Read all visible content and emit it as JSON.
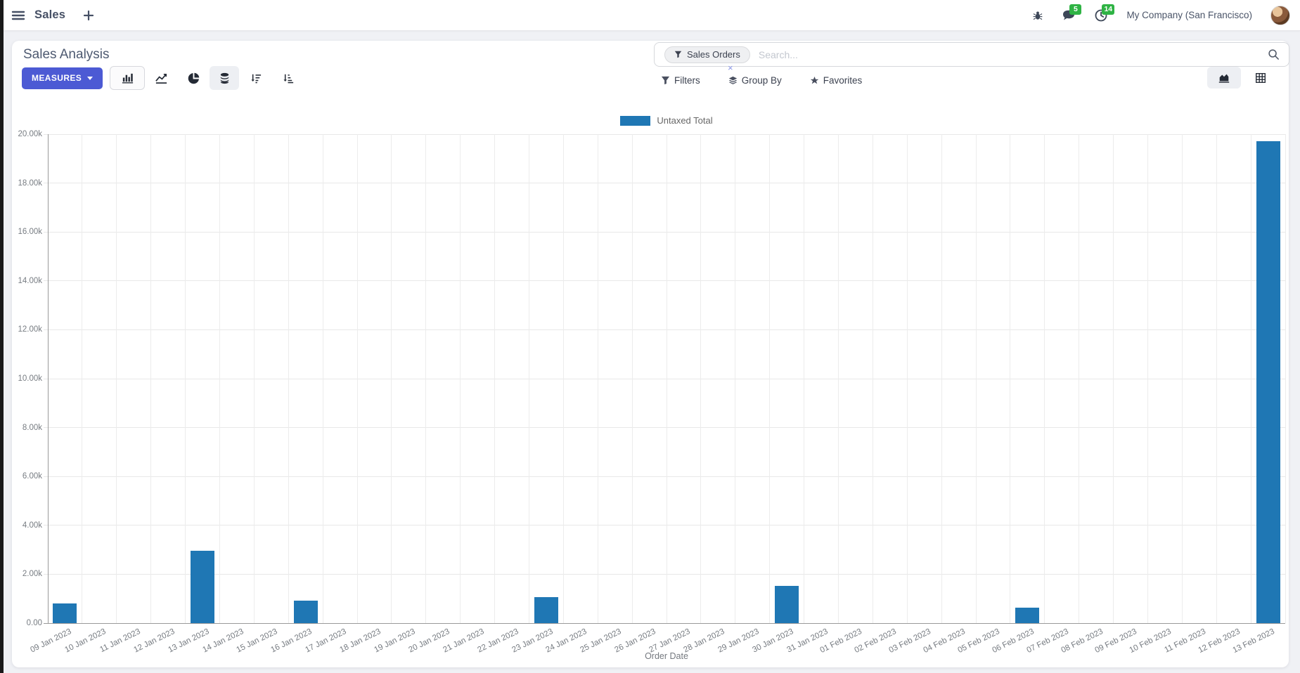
{
  "navbar": {
    "app_name": "Sales",
    "messages_badge": "5",
    "activities_badge": "14",
    "company": "My Company (San Francisco)"
  },
  "control_panel": {
    "title": "Sales Analysis",
    "measures_label": "MEASURES",
    "search": {
      "facet_label": "Sales Orders",
      "facet_remove": "×",
      "placeholder": "Search..."
    },
    "filters_label": "Filters",
    "group_by_label": "Group By",
    "favorites_label": "Favorites"
  },
  "icons": {
    "menu-icon": "hamburger",
    "new-tab-icon": "plus",
    "debug-icon": "bug",
    "messages-icon": "speech-bubble",
    "activities-icon": "clock",
    "bar-chart-icon": "vertical bars",
    "line-chart-icon": "polyline",
    "pie-chart-icon": "pie",
    "stacked-icon": "database stack",
    "sort-desc-icon": "arrow down + decreasing bars",
    "sort-asc-icon": "arrow down + increasing bars",
    "filter-icon": "funnel",
    "group-by-icon": "layers",
    "favorites-icon": "star",
    "search-icon": "magnifier",
    "graph-view-icon": "area chart",
    "pivot-view-icon": "grid table"
  },
  "colors": {
    "primary_button": "#4c5ad4",
    "bar_series": "#1f77b4",
    "badge_green": "#2fb344",
    "axis_text": "#767b81",
    "grid_line": "#e8e8e8"
  },
  "chart_data": {
    "type": "bar",
    "title": "",
    "xlabel": "Order Date",
    "ylabel": "",
    "ylim": [
      0,
      20000
    ],
    "ytick_step": 2000,
    "ytick_labels": [
      "20.00k",
      "18.00k",
      "16.00k",
      "14.00k",
      "12.00k",
      "10.00k",
      "8.00k",
      "6.00k",
      "4.00k",
      "2.00k",
      "0.00"
    ],
    "grid": true,
    "legend_position": "top",
    "categories": [
      "09 Jan 2023",
      "10 Jan 2023",
      "11 Jan 2023",
      "12 Jan 2023",
      "13 Jan 2023",
      "14 Jan 2023",
      "15 Jan 2023",
      "16 Jan 2023",
      "17 Jan 2023",
      "18 Jan 2023",
      "19 Jan 2023",
      "20 Jan 2023",
      "21 Jan 2023",
      "22 Jan 2023",
      "23 Jan 2023",
      "24 Jan 2023",
      "25 Jan 2023",
      "26 Jan 2023",
      "27 Jan 2023",
      "28 Jan 2023",
      "29 Jan 2023",
      "30 Jan 2023",
      "31 Jan 2023",
      "01 Feb 2023",
      "02 Feb 2023",
      "03 Feb 2023",
      "04 Feb 2023",
      "05 Feb 2023",
      "06 Feb 2023",
      "07 Feb 2023",
      "08 Feb 2023",
      "09 Feb 2023",
      "10 Feb 2023",
      "11 Feb 2023",
      "12 Feb 2023",
      "13 Feb 2023"
    ],
    "series": [
      {
        "name": "Untaxed Total",
        "color": "#1f77b4",
        "values": [
          810,
          0,
          0,
          0,
          2950,
          0,
          0,
          920,
          0,
          0,
          0,
          0,
          0,
          0,
          1060,
          0,
          0,
          0,
          0,
          0,
          0,
          1520,
          0,
          0,
          0,
          0,
          0,
          0,
          620,
          0,
          0,
          0,
          0,
          0,
          0,
          19700
        ]
      }
    ]
  }
}
